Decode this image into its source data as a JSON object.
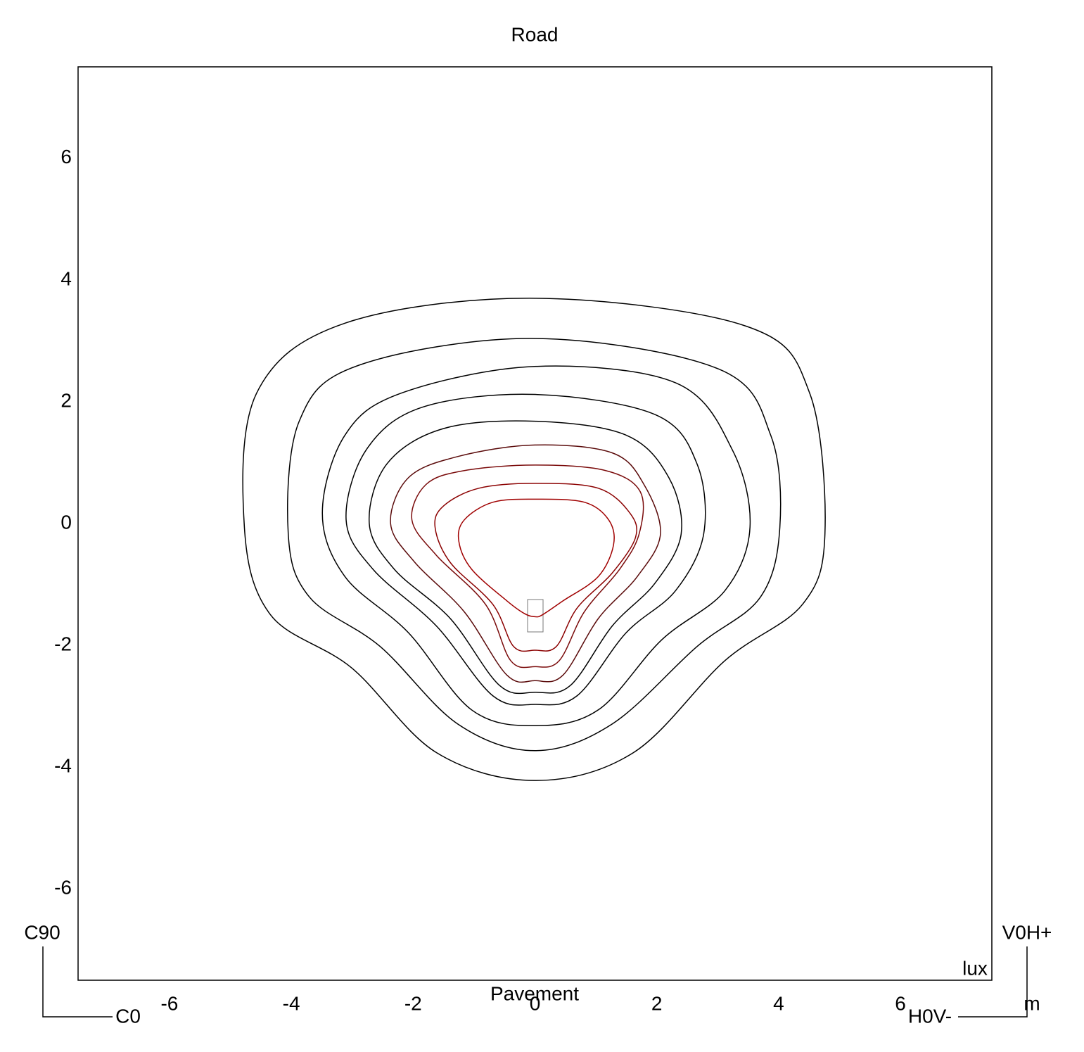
{
  "chart_data": {
    "type": "contour",
    "title": "Road",
    "bottom_label": "Pavement",
    "unit_label": "lux",
    "axis_unit": "m",
    "corner_labels": {
      "top_left": "C90",
      "bottom_left": "C0",
      "top_right": "V0H+",
      "bottom_right": "H0V-"
    },
    "xlim": [
      -7.5,
      7.5
    ],
    "ylim": [
      -7.5,
      7.5
    ],
    "xticks": [
      -6,
      -4,
      -2,
      0,
      2,
      4,
      6
    ],
    "yticks": [
      -6,
      -4,
      -2,
      0,
      2,
      4,
      6
    ],
    "contours": [
      {
        "color": "#000000",
        "x": [
          0,
          3.47,
          4.51,
          4.76,
          4.39,
          3.12,
          1.62,
          0,
          -1.62,
          -3.01,
          -4.34,
          -4.77,
          -4.57,
          -3.12
        ],
        "y": [
          3.7,
          3.24,
          2.14,
          -0.17,
          -1.33,
          -2.25,
          -3.76,
          -4.22,
          -3.76,
          -2.37,
          -1.5,
          -0.06,
          2.14,
          3.29
        ]
      },
      {
        "color": "#000000",
        "x": [
          0,
          3.01,
          3.87,
          4.02,
          3.7,
          2.66,
          1.27,
          0,
          -1.27,
          -2.54,
          -3.7,
          -4.05,
          -3.87,
          -2.89
        ],
        "y": [
          3.04,
          2.54,
          1.45,
          -0.06,
          -1.21,
          -2.02,
          -3.29,
          -3.73,
          -3.29,
          -2.02,
          -1.21,
          -0.17,
          1.68,
          2.6
        ]
      },
      {
        "color": "#000000",
        "x": [
          0,
          2.31,
          3.24,
          3.53,
          3.12,
          2.08,
          1.04,
          0,
          -1.04,
          -2.08,
          -3.12,
          -3.49,
          -3.12,
          -2.2
        ],
        "y": [
          2.58,
          2.31,
          1.21,
          -0.06,
          -1.1,
          -1.91,
          -3.06,
          -3.32,
          -3.06,
          -1.79,
          -0.87,
          0.17,
          1.45,
          2.14
        ]
      },
      {
        "color": "#000000",
        "x": [
          0,
          1.97,
          2.66,
          2.77,
          2.31,
          1.5,
          0.69,
          0,
          -0.69,
          -1.62,
          -2.66,
          -3.1,
          -2.77,
          -1.85
        ],
        "y": [
          2.12,
          1.79,
          0.98,
          -0.17,
          -1.1,
          -1.79,
          -2.83,
          -2.97,
          -2.83,
          -1.68,
          -0.75,
          0.06,
          1.21,
          1.91
        ]
      },
      {
        "color": "#000000",
        "x": [
          0,
          1.5,
          2.2,
          2.4,
          1.97,
          1.27,
          0.58,
          0,
          -0.58,
          -1.39,
          -2.31,
          -2.72,
          -2.43,
          -1.5
        ],
        "y": [
          1.68,
          1.45,
          0.75,
          -0.17,
          -0.98,
          -1.68,
          -2.66,
          -2.77,
          -2.66,
          -1.56,
          -0.75,
          0,
          0.98,
          1.56
        ]
      },
      {
        "color": "#5a0a0a",
        "x": [
          0,
          1.27,
          1.79,
          2.06,
          1.68,
          1.04,
          0.46,
          0,
          -0.46,
          -1.16,
          -1.97,
          -2.37,
          -2.08,
          -1.27
        ],
        "y": [
          1.29,
          1.16,
          0.64,
          -0.17,
          -0.87,
          -1.56,
          -2.49,
          -2.58,
          -2.49,
          -1.45,
          -0.64,
          0,
          0.75,
          1.1
        ]
      },
      {
        "color": "#7a0a0a",
        "x": [
          0,
          1.16,
          1.73,
          1.71,
          1.39,
          0.81,
          0.4,
          0,
          -0.4,
          -0.81,
          -1.62,
          -2.02,
          -1.79,
          -1.16
        ],
        "y": [
          0.96,
          0.87,
          0.52,
          -0.17,
          -0.75,
          -1.45,
          -2.25,
          -2.35,
          -2.25,
          -1.33,
          -0.52,
          0.06,
          0.64,
          0.87
        ]
      },
      {
        "color": "#8b0000",
        "x": [
          0,
          1.04,
          1.56,
          1.65,
          1.27,
          0.69,
          0.35,
          0,
          -0.35,
          -0.69,
          -1.39,
          -1.64,
          -1.5,
          -0.92
        ],
        "y": [
          0.66,
          0.58,
          0.17,
          -0.23,
          -0.81,
          -1.39,
          -2.02,
          -2.08,
          -2.02,
          -1.33,
          -0.64,
          -0.06,
          0.29,
          0.58
        ]
      },
      {
        "color": "#a00000",
        "x": [
          0,
          0.81,
          1.21,
          1.29,
          1.04,
          0.46,
          0.12,
          0,
          -0.17,
          -0.46,
          -1.04,
          -1.25,
          -1.16,
          -0.69
        ],
        "y": [
          0.4,
          0.35,
          0.06,
          -0.35,
          -0.87,
          -1.27,
          -1.5,
          -1.53,
          -1.48,
          -1.27,
          -0.75,
          -0.29,
          0.06,
          0.35
        ]
      }
    ]
  }
}
